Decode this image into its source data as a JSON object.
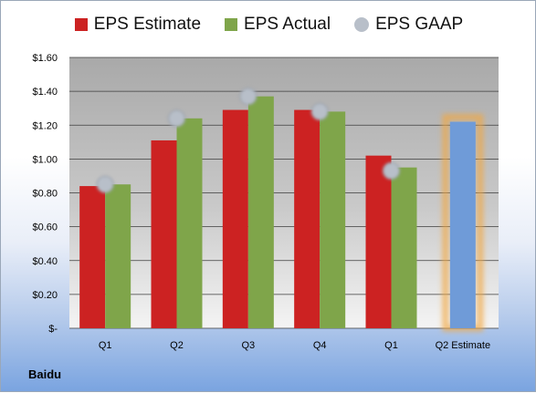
{
  "company": "Baidu",
  "chart_data": {
    "type": "bar",
    "categories": [
      "Q1",
      "Q2",
      "Q3",
      "Q4",
      "Q1",
      "Q2 Estimate"
    ],
    "series": [
      {
        "name": "EPS Estimate",
        "color": "#cc2222",
        "values": [
          0.84,
          1.11,
          1.29,
          1.29,
          1.02,
          null
        ]
      },
      {
        "name": "EPS Actual",
        "color": "#7fa54a",
        "values": [
          0.85,
          1.24,
          1.37,
          1.28,
          0.95,
          null
        ]
      },
      {
        "name": "EPS GAAP",
        "color": "#b8bfc9",
        "marker": "circle",
        "values": [
          0.85,
          1.24,
          1.37,
          1.28,
          0.93,
          null
        ]
      }
    ],
    "highlight": {
      "category": "Q2 Estimate",
      "value": 1.22,
      "color": "#6f9bd8",
      "glow": "#f2a640"
    },
    "y_ticks": [
      "$-",
      "$0.20",
      "$0.40",
      "$0.60",
      "$0.80",
      "$1.00",
      "$1.20",
      "$1.40",
      "$1.60"
    ],
    "ylim": [
      0,
      1.6
    ],
    "grid": true,
    "legend": "top"
  }
}
